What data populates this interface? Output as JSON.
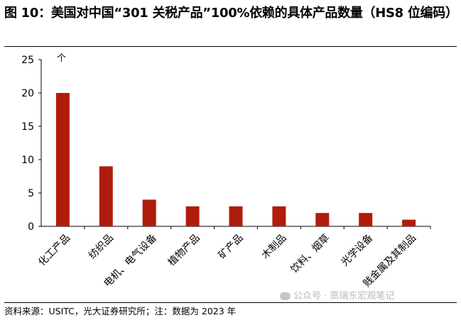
{
  "title": "图 10：美国对中国“301 关税产品”100%依赖的具体产品数量（HS8 位编码）",
  "source": "资料来源：USITC，光大证券研究所；注：数据为 2023 年",
  "watermark": "公众号 · 高瑞东宏观笔记",
  "watermark_icon": "wechat-icon",
  "colors": {
    "bar": "#b01c0c",
    "axis": "#000000"
  },
  "chart_data": {
    "type": "bar",
    "title": "",
    "xlabel": "",
    "ylabel": "个",
    "ylim": [
      0,
      25
    ],
    "yticks": [
      0,
      5,
      10,
      15,
      20,
      25
    ],
    "categories": [
      "化工产品",
      "纺织品",
      "电机、电气设备",
      "植物产品",
      "矿产品",
      "木制品",
      "饮料、烟草",
      "光学设备",
      "贱金属及其制品"
    ],
    "values": [
      20,
      9,
      4,
      3,
      3,
      3,
      2,
      2,
      1
    ],
    "grid": false,
    "legend": "none"
  }
}
